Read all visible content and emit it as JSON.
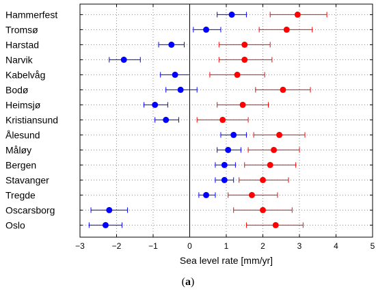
{
  "chart_data": {
    "type": "scatter",
    "xlabel": "Sea level rate [mm/yr]",
    "xlim": [
      -3,
      5
    ],
    "xticks": [
      "−3",
      "−2",
      "−1",
      "0",
      "1",
      "2",
      "3",
      "4",
      "5"
    ],
    "grid": true,
    "categories": [
      "Hammerfest",
      "Tromsø",
      "Harstad",
      "Narvik",
      "Kabelvåg",
      "Bodø",
      "Heimsjø",
      "Kristiansund",
      "Ålesund",
      "Måløy",
      "Bergen",
      "Stavanger",
      "Tregde",
      "Oscarsborg",
      "Oslo"
    ],
    "series": [
      {
        "color": "#0000ff",
        "values": [
          1.15,
          0.45,
          -0.5,
          -1.8,
          -0.4,
          -0.25,
          -0.95,
          -0.65,
          1.2,
          1.05,
          0.95,
          0.95,
          0.45,
          -2.2,
          -2.3
        ],
        "err_low": [
          0.75,
          0.1,
          -0.85,
          -2.2,
          -0.8,
          -0.65,
          -1.25,
          -0.95,
          0.85,
          0.75,
          0.7,
          0.7,
          0.25,
          -2.7,
          -2.75
        ],
        "err_high": [
          1.55,
          0.85,
          -0.15,
          -1.35,
          0.0,
          0.2,
          -0.6,
          -0.3,
          1.55,
          1.4,
          1.25,
          1.2,
          0.7,
          -1.7,
          -1.85
        ]
      },
      {
        "color": "#ff0000",
        "values": [
          2.95,
          2.65,
          1.5,
          1.5,
          1.3,
          2.55,
          1.45,
          0.9,
          2.45,
          2.3,
          2.2,
          2.0,
          1.7,
          2.0,
          2.35
        ],
        "err_low": [
          2.2,
          1.9,
          0.8,
          0.8,
          0.55,
          1.8,
          0.75,
          0.2,
          1.75,
          1.6,
          1.5,
          1.35,
          1.05,
          1.2,
          1.55
        ],
        "err_high": [
          3.75,
          3.35,
          2.2,
          2.25,
          2.05,
          3.3,
          2.15,
          1.6,
          3.15,
          3.0,
          2.9,
          2.7,
          2.4,
          2.8,
          3.1
        ]
      }
    ]
  },
  "caption": {
    "label": "(a)"
  }
}
